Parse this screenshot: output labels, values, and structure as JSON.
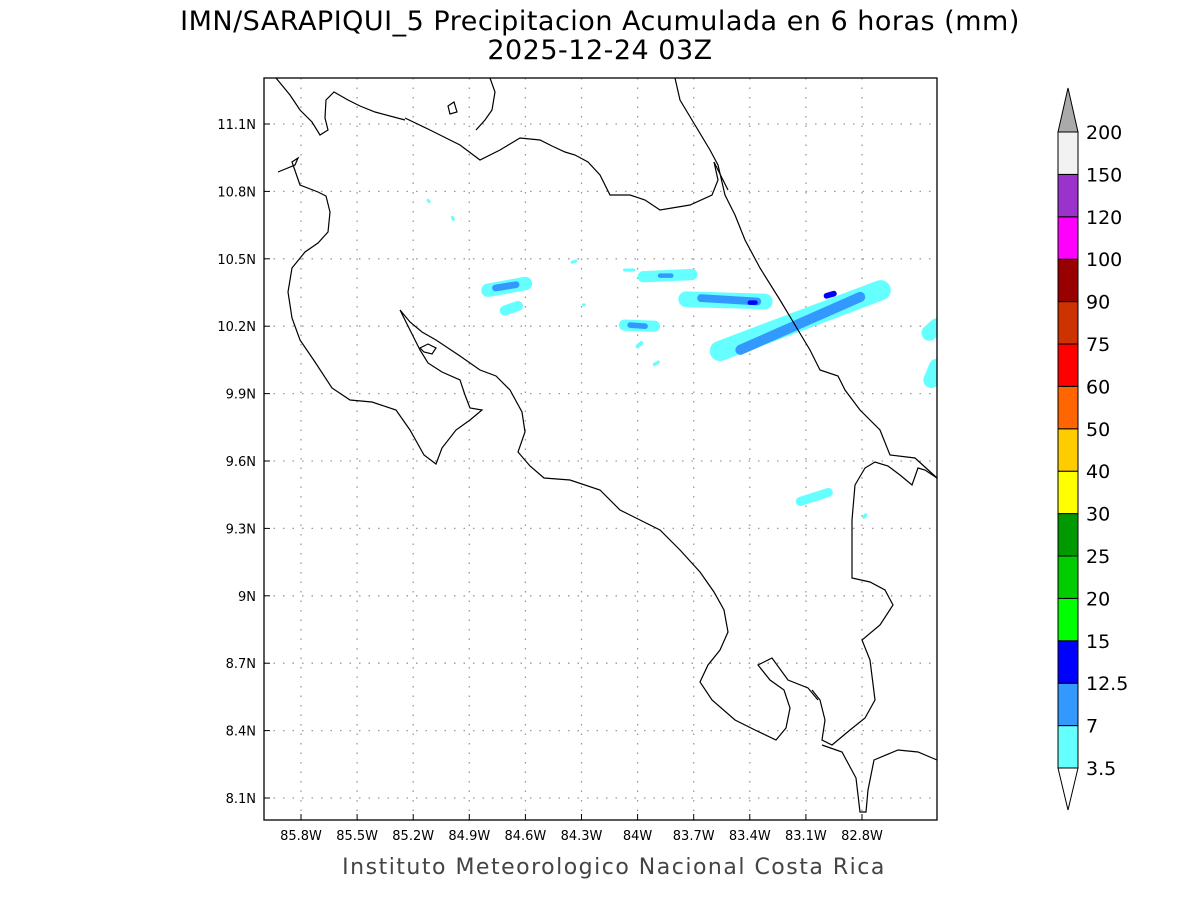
{
  "chart_data": {
    "type": "heatmap",
    "title": "IMN/SARAPIQUI_5 Precipitacion Acumulada en 6 horas (mm)",
    "subtitle": "2025-12-24 03Z",
    "credit": "Instituto Meteorologico Nacional Costa Rica",
    "xlabel": "",
    "ylabel": "",
    "lon_range_west": [
      86.0,
      82.4
    ],
    "lat_range": [
      8.0,
      11.3
    ],
    "x_ticks": [
      "85.8W",
      "85.5W",
      "85.2W",
      "84.9W",
      "84.6W",
      "84.3W",
      "84W",
      "83.7W",
      "83.4W",
      "83.1W",
      "82.8W"
    ],
    "x_tick_values_west": [
      85.8,
      85.5,
      85.2,
      84.9,
      84.6,
      84.3,
      84.0,
      83.7,
      83.4,
      83.1,
      82.8
    ],
    "y_ticks": [
      "11.1N",
      "10.8N",
      "10.5N",
      "10.2N",
      "9.9N",
      "9.6N",
      "9.3N",
      "9N",
      "8.7N",
      "8.4N",
      "8.1N"
    ],
    "y_tick_values": [
      11.1,
      10.8,
      10.5,
      10.2,
      9.9,
      9.6,
      9.3,
      9.0,
      8.7,
      8.4,
      8.1
    ],
    "grid": true,
    "legend": {
      "placement": "right",
      "levels": [
        "3.5",
        "7",
        "12.5",
        "15",
        "20",
        "25",
        "30",
        "40",
        "50",
        "60",
        "75",
        "90",
        "100",
        "120",
        "150",
        "200"
      ],
      "colors": [
        "#66ffff",
        "#3399ff",
        "#0000ff",
        "#00ff00",
        "#00cc00",
        "#009900",
        "#ffff00",
        "#ffcc00",
        "#ff6600",
        "#ff0000",
        "#cc3300",
        "#990000",
        "#ff00ff",
        "#9933cc",
        "#f2f2f2"
      ],
      "over_color": "#aaaaaa",
      "under_color": "#ffffff"
    },
    "precip_features": [
      {
        "from": [
          83.74,
          10.32
        ],
        "to": [
          83.32,
          10.31
        ],
        "width_deg": 0.07,
        "level": 3.5
      },
      {
        "from": [
          83.66,
          10.325
        ],
        "to": [
          83.36,
          10.31
        ],
        "width_deg": 0.035,
        "level": 7
      },
      {
        "from": [
          83.4,
          10.305
        ],
        "to": [
          83.37,
          10.305
        ],
        "width_deg": 0.02,
        "level": 12.5
      },
      {
        "from": [
          83.56,
          10.09
        ],
        "to": [
          82.7,
          10.36
        ],
        "width_deg": 0.09,
        "level": 3.5
      },
      {
        "from": [
          83.45,
          10.095
        ],
        "to": [
          82.81,
          10.33
        ],
        "width_deg": 0.045,
        "level": 7
      },
      {
        "from": [
          82.99,
          10.335
        ],
        "to": [
          82.95,
          10.345
        ],
        "width_deg": 0.025,
        "level": 12.5
      },
      {
        "from": [
          83.97,
          10.42
        ],
        "to": [
          83.71,
          10.43
        ],
        "width_deg": 0.05,
        "level": 3.5
      },
      {
        "from": [
          83.88,
          10.425
        ],
        "to": [
          83.82,
          10.425
        ],
        "width_deg": 0.02,
        "level": 7
      },
      {
        "from": [
          84.8,
          10.36
        ],
        "to": [
          84.6,
          10.39
        ],
        "width_deg": 0.06,
        "level": 3.5
      },
      {
        "from": [
          84.76,
          10.37
        ],
        "to": [
          84.65,
          10.385
        ],
        "width_deg": 0.03,
        "level": 7
      },
      {
        "from": [
          84.71,
          10.27
        ],
        "to": [
          84.64,
          10.29
        ],
        "width_deg": 0.045,
        "level": 3.5
      },
      {
        "from": [
          84.07,
          10.205
        ],
        "to": [
          83.91,
          10.2
        ],
        "width_deg": 0.05,
        "level": 3.5
      },
      {
        "from": [
          84.04,
          10.205
        ],
        "to": [
          83.96,
          10.2
        ],
        "width_deg": 0.025,
        "level": 7
      },
      {
        "from": [
          83.13,
          9.42
        ],
        "to": [
          82.98,
          9.46
        ],
        "width_deg": 0.04,
        "level": 3.5
      },
      {
        "from": [
          82.44,
          10.17
        ],
        "to": [
          82.4,
          10.2
        ],
        "width_deg": 0.07,
        "level": 3.5
      },
      {
        "from": [
          82.43,
          9.96
        ],
        "to": [
          82.4,
          10.02
        ],
        "width_deg": 0.07,
        "level": 3.5
      },
      {
        "from": [
          84.99,
          10.685
        ],
        "to": [
          84.985,
          10.675
        ],
        "width_deg": 0.012,
        "level": 3.5
      },
      {
        "from": [
          85.12,
          10.76
        ],
        "to": [
          85.115,
          10.755
        ],
        "width_deg": 0.01,
        "level": 3.5
      },
      {
        "from": [
          84.35,
          10.485
        ],
        "to": [
          84.33,
          10.49
        ],
        "width_deg": 0.012,
        "level": 3.5
      },
      {
        "from": [
          84.29,
          10.295
        ],
        "to": [
          84.285,
          10.295
        ],
        "width_deg": 0.01,
        "level": 3.5
      },
      {
        "from": [
          84.0,
          10.11
        ],
        "to": [
          83.98,
          10.125
        ],
        "width_deg": 0.018,
        "level": 3.5
      },
      {
        "from": [
          83.91,
          10.03
        ],
        "to": [
          83.89,
          10.04
        ],
        "width_deg": 0.015,
        "level": 3.5
      },
      {
        "from": [
          82.79,
          9.35
        ],
        "to": [
          82.78,
          9.36
        ],
        "width_deg": 0.015,
        "level": 3.5
      },
      {
        "from": [
          84.07,
          10.45
        ],
        "to": [
          84.02,
          10.45
        ],
        "width_deg": 0.01,
        "level": 3.5
      }
    ]
  }
}
